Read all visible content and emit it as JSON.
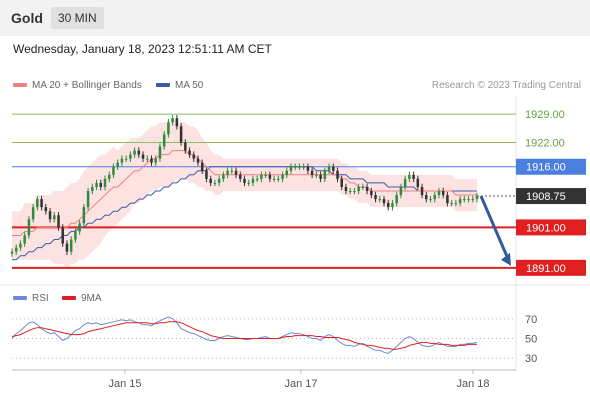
{
  "header": {
    "symbol": "Gold",
    "timeframe": "30 MIN"
  },
  "datetime": "Wednesday, January 18, 2023 12:51:11 AM CET",
  "credit": "Research © 2023 Trading Central",
  "colors": {
    "ma20": "#f08080",
    "ma50": "#3a5aa8",
    "resistance": "#88c060",
    "pivot": "#4a7fe0",
    "support": "#e02020",
    "rsi": "#6a8ad8",
    "rsi_ma": "#e02020",
    "arrow": "#2e5a9e",
    "current": "#333333"
  },
  "chart_data": [
    {
      "type": "line",
      "title": "",
      "legend": [
        {
          "name": "MA 20 + Bollinger Bands",
          "color": "#f08080"
        },
        {
          "name": "MA 50",
          "color": "#3a5aa8"
        }
      ],
      "x_ticks": [
        "Jan 15",
        "Jan 17",
        "Jan 18"
      ],
      "ylim": [
        1887,
        1933
      ],
      "levels": [
        {
          "value": 1929.0,
          "label": "1929.00",
          "kind": "resistance"
        },
        {
          "value": 1922.0,
          "label": "1922.00",
          "kind": "resistance"
        },
        {
          "value": 1916.0,
          "label": "1916.00",
          "kind": "pivot"
        },
        {
          "value": 1901.0,
          "label": "1901.00",
          "kind": "support"
        },
        {
          "value": 1891.0,
          "label": "1891.00",
          "kind": "support"
        }
      ],
      "last_price": {
        "value": 1908.75,
        "label": "1908.75"
      },
      "projection": {
        "from": 1908.75,
        "to": 1891.0
      },
      "close": [
        1895,
        1896,
        1897,
        1899,
        1903,
        1906,
        1908,
        1906,
        1905,
        1903,
        1904,
        1901,
        1897,
        1895,
        1898,
        1900,
        1902,
        1906,
        1910,
        1911,
        1912,
        1911,
        1913,
        1914,
        1916,
        1917,
        1918,
        1918,
        1919,
        1920,
        1919,
        1918,
        1918,
        1917,
        1918,
        1921,
        1924,
        1927,
        1928,
        1926,
        1922,
        1920,
        1919,
        1918,
        1917,
        1915,
        1913,
        1912,
        1912,
        1913,
        1914,
        1915,
        1915,
        1914,
        1913,
        1912,
        1912,
        1913,
        1913,
        1914,
        1914,
        1913,
        1913,
        1913,
        1914,
        1915,
        1916,
        1916,
        1916,
        1916,
        1915,
        1914,
        1914,
        1913,
        1915,
        1916,
        1915,
        1913,
        1911,
        1910,
        1910,
        1910,
        1911,
        1911,
        1910,
        1909,
        1908,
        1908,
        1907,
        1906,
        1907,
        1909,
        1911,
        1913,
        1914,
        1913,
        1911,
        1909,
        1908,
        1908,
        1909,
        1910,
        1909,
        1907,
        1907,
        1907,
        1908,
        1908,
        1908,
        1908,
        1908.75
      ],
      "ma20": [
        1899,
        1899,
        1899,
        1900,
        1900,
        1900,
        1901,
        1901,
        1901,
        1901,
        1901,
        1901,
        1901,
        1901,
        1902,
        1902,
        1903,
        1904,
        1905,
        1906,
        1907,
        1908,
        1909,
        1910,
        1911,
        1911,
        1912,
        1913,
        1914,
        1915,
        1915,
        1916,
        1917,
        1918,
        1918,
        1919,
        1919,
        1919,
        1920,
        1920,
        1920,
        1920,
        1919,
        1919,
        1918,
        1917,
        1916,
        1915,
        1914,
        1914,
        1914,
        1914,
        1914,
        1914,
        1914,
        1914,
        1914,
        1914,
        1914,
        1914,
        1914,
        1914,
        1914,
        1914,
        1914,
        1914,
        1914,
        1914,
        1914,
        1914,
        1914,
        1914,
        1914,
        1914,
        1914,
        1914,
        1914,
        1914,
        1913,
        1913,
        1912,
        1912,
        1911,
        1911,
        1911,
        1910,
        1910,
        1910,
        1910,
        1910,
        1910,
        1910,
        1910,
        1910,
        1910,
        1910,
        1910,
        1910,
        1910,
        1910,
        1910,
        1910,
        1910,
        1910,
        1910,
        1909,
        1909,
        1909,
        1909,
        1909,
        1909
      ],
      "band": [
        6,
        6,
        6,
        7,
        7,
        7,
        8,
        8,
        8,
        8,
        9,
        9,
        9,
        10,
        10,
        10,
        10,
        11,
        11,
        11,
        11,
        11,
        10,
        10,
        10,
        9,
        9,
        9,
        9,
        8,
        8,
        8,
        8,
        8,
        8,
        8,
        8,
        8,
        8,
        7,
        7,
        7,
        7,
        7,
        7,
        6,
        6,
        5,
        5,
        5,
        4,
        4,
        4,
        4,
        4,
        4,
        4,
        4,
        4,
        4,
        4,
        4,
        4,
        4,
        4,
        4,
        4,
        4,
        4,
        4,
        4,
        4,
        4,
        4,
        4,
        4,
        4,
        4,
        4,
        4,
        4,
        4,
        4,
        4,
        4,
        4,
        4,
        4,
        4,
        4,
        4,
        4,
        4,
        4,
        4,
        4,
        4,
        4,
        4,
        4,
        4,
        4,
        4,
        4,
        4,
        4,
        4,
        4,
        4,
        4,
        4
      ],
      "ma50": [
        1893,
        1893,
        1894,
        1894,
        1895,
        1895,
        1896,
        1896,
        1897,
        1897,
        1898,
        1898,
        1899,
        1899,
        1900,
        1900,
        1901,
        1901,
        1902,
        1902,
        1903,
        1903,
        1904,
        1904,
        1905,
        1905,
        1906,
        1906,
        1907,
        1907,
        1908,
        1908,
        1909,
        1909,
        1910,
        1910,
        1911,
        1911,
        1912,
        1912,
        1913,
        1913,
        1914,
        1914,
        1915,
        1915,
        1915,
        1916,
        1916,
        1916,
        1916,
        1916,
        1916,
        1916,
        1916,
        1916,
        1916,
        1916,
        1916,
        1916,
        1916,
        1916,
        1916,
        1916,
        1916,
        1916,
        1916,
        1916,
        1916,
        1916,
        1916,
        1916,
        1915,
        1915,
        1915,
        1915,
        1914,
        1914,
        1914,
        1914,
        1913,
        1913,
        1913,
        1913,
        1912,
        1912,
        1912,
        1912,
        1912,
        1911,
        1911,
        1911,
        1911,
        1911,
        1911,
        1911,
        1910,
        1910,
        1910,
        1910,
        1910,
        1910,
        1910,
        1910,
        1910,
        1910,
        1910,
        1910,
        1910,
        1910,
        1910
      ]
    },
    {
      "type": "line",
      "title": "",
      "legend": [
        {
          "name": "RSI",
          "color": "#6a8ad8"
        },
        {
          "name": "9MA",
          "color": "#e02020"
        }
      ],
      "ylim": [
        20,
        80
      ],
      "y_ticks": [
        70,
        50,
        30
      ],
      "rsi": [
        50,
        55,
        58,
        62,
        66,
        67,
        64,
        60,
        57,
        55,
        56,
        52,
        48,
        50,
        54,
        58,
        60,
        64,
        66,
        65,
        66,
        64,
        65,
        66,
        67,
        68,
        69,
        68,
        69,
        67,
        66,
        64,
        64,
        63,
        66,
        68,
        70,
        72,
        70,
        66,
        60,
        58,
        56,
        55,
        53,
        51,
        49,
        48,
        48,
        50,
        52,
        53,
        52,
        51,
        50,
        49,
        49,
        50,
        50,
        51,
        52,
        50,
        50,
        50,
        52,
        54,
        56,
        55,
        55,
        54,
        52,
        50,
        50,
        48,
        52,
        54,
        52,
        48,
        45,
        43,
        43,
        42,
        44,
        45,
        42,
        40,
        38,
        38,
        36,
        35,
        38,
        42,
        46,
        50,
        52,
        50,
        46,
        43,
        42,
        42,
        44,
        46,
        44,
        42,
        42,
        42,
        44,
        44,
        45,
        45,
        46
      ],
      "ma9": [
        52,
        53,
        54,
        56,
        58,
        60,
        61,
        61,
        60,
        59,
        58,
        57,
        56,
        55,
        54,
        54,
        54,
        55,
        57,
        58,
        59,
        60,
        61,
        62,
        63,
        64,
        65,
        66,
        66,
        66,
        66,
        66,
        66,
        65,
        65,
        66,
        66,
        67,
        67,
        67,
        66,
        64,
        62,
        60,
        58,
        57,
        55,
        53,
        52,
        51,
        50,
        50,
        50,
        50,
        50,
        50,
        50,
        50,
        50,
        50,
        50,
        50,
        50,
        50,
        51,
        52,
        52,
        53,
        53,
        53,
        53,
        53,
        52,
        52,
        51,
        51,
        51,
        51,
        50,
        49,
        48,
        46,
        45,
        44,
        43,
        43,
        42,
        41,
        40,
        40,
        39,
        39,
        40,
        41,
        43,
        44,
        45,
        46,
        46,
        45,
        45,
        44,
        44,
        44,
        43,
        43,
        43,
        43,
        44,
        44,
        44
      ]
    }
  ]
}
